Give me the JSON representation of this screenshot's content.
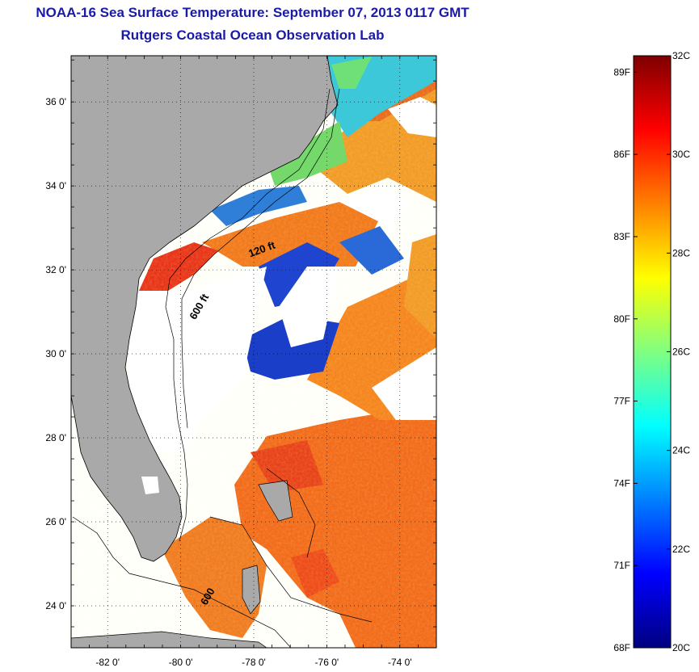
{
  "title": {
    "line1": "NOAA-16 Sea Surface Temperature:  September 07, 2013 0117 GMT",
    "line2": "Rutgers Coastal Ocean Observation Lab"
  },
  "map": {
    "lat_ticks": [
      {
        "value": 36,
        "label": "36 0'"
      },
      {
        "value": 34,
        "label": "34 0'"
      },
      {
        "value": 32,
        "label": "32 0'"
      },
      {
        "value": 30,
        "label": "30 0'"
      },
      {
        "value": 28,
        "label": "28 0'"
      },
      {
        "value": 26,
        "label": "26 0'"
      },
      {
        "value": 24,
        "label": "24 0'"
      }
    ],
    "lon_ticks": [
      {
        "value": -82,
        "label": "-82 0'"
      },
      {
        "value": -80,
        "label": "-80 0'"
      },
      {
        "value": -78,
        "label": "-78 0'"
      },
      {
        "value": -76,
        "label": "-76 0'"
      },
      {
        "value": -74,
        "label": "-74 0'"
      }
    ],
    "lon_range": [
      -83.0,
      -73.0
    ],
    "lat_range": [
      23.0,
      37.1
    ],
    "land_color": "#a9a9a9",
    "cloud_color": "#ffffff",
    "contour_labels": [
      {
        "text": "120 ft",
        "lon": -78.1,
        "lat": 32.3
      },
      {
        "text": "600 ft",
        "lon": -79.6,
        "lat": 30.8
      },
      {
        "text": "600",
        "lon": -79.3,
        "lat": 24.0
      }
    ]
  },
  "colorbar": {
    "min_c": 20,
    "max_c": 32,
    "colors": [
      "#00007f",
      "#0000ff",
      "#0080ff",
      "#00ffff",
      "#80ff80",
      "#ffff00",
      "#ff8000",
      "#ff0000",
      "#7f0000"
    ],
    "celsius_labels": [
      {
        "value": 32,
        "label": "32C"
      },
      {
        "value": 30,
        "label": "30C"
      },
      {
        "value": 28,
        "label": "28C"
      },
      {
        "value": 26,
        "label": "26C"
      },
      {
        "value": 24,
        "label": "24C"
      },
      {
        "value": 22,
        "label": "22C"
      },
      {
        "value": 20,
        "label": "20C"
      }
    ],
    "fahrenheit_labels": [
      {
        "value": 89,
        "label": "89F"
      },
      {
        "value": 86,
        "label": "86F"
      },
      {
        "value": 83,
        "label": "83F"
      },
      {
        "value": 80,
        "label": "80F"
      },
      {
        "value": 77,
        "label": "77F"
      },
      {
        "value": 74,
        "label": "74F"
      },
      {
        "value": 71,
        "label": "71F"
      },
      {
        "value": 68,
        "label": "68F"
      }
    ]
  }
}
